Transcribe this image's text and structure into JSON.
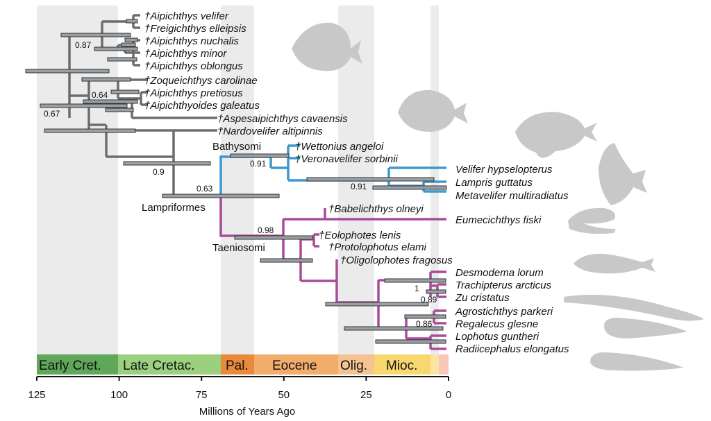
{
  "axis": {
    "label": "Millions of Years Ago",
    "ticks": [
      125,
      100,
      75,
      50,
      25,
      0
    ],
    "range_ma": [
      125,
      0
    ]
  },
  "periods": [
    {
      "label": "Early Cret.",
      "from": 125,
      "to": 100.5,
      "color": "#5fa85a"
    },
    {
      "label": "Late Cretac.",
      "from": 100.5,
      "to": 66,
      "color": "#9bd07e"
    },
    {
      "label": "Pal.",
      "from": 66,
      "to": 56,
      "color": "#e88a3a"
    },
    {
      "label": "Eocene",
      "from": 56,
      "to": 33.9,
      "color": "#f2ac6c"
    },
    {
      "label": "Olig.",
      "from": 33.9,
      "to": 23,
      "color": "#f5c392"
    },
    {
      "label": "Mioc.",
      "from": 23,
      "to": 5.3,
      "color": "#f8d86e"
    },
    {
      "label": "",
      "from": 5.3,
      "to": 2.6,
      "color": "#fbe3a2"
    },
    {
      "label": "",
      "from": 2.6,
      "to": 0,
      "color": "#f7c8b8"
    }
  ],
  "colors": {
    "stem": "#6d6d6d",
    "bathysomi": "#3d98cc",
    "taeniosomi": "#a84c9a",
    "silhouette": "#c8c8c8",
    "shade": "#e8e8e8",
    "bar": "#9aa0a4"
  },
  "taxa": [
    {
      "name": "†Aipichthys velifer",
      "age": 94,
      "lineage": "stem"
    },
    {
      "name": "†Freigichthys elleipsis",
      "age": 94,
      "lineage": "stem"
    },
    {
      "name": "†Aipichthys nuchalis",
      "age": 94,
      "lineage": "stem"
    },
    {
      "name": "†Aipichthys minor",
      "age": 94,
      "lineage": "stem"
    },
    {
      "name": "†Aipichthys oblongus",
      "age": 94,
      "lineage": "stem"
    },
    {
      "name": "†Zoqueichthys carolinae",
      "age": 94,
      "lineage": "stem"
    },
    {
      "name": "†Aipichthys pretiosus",
      "age": 94,
      "lineage": "stem"
    },
    {
      "name": "†Aipichthyoides galeatus",
      "age": 94,
      "lineage": "stem"
    },
    {
      "name": "†Aspesaipichthys cavaensis",
      "age": 70,
      "lineage": "stem"
    },
    {
      "name": "†Nardovelifer altipinnis",
      "age": 70,
      "lineage": "stem"
    },
    {
      "name": "†Wettonius angeloi",
      "age": 50,
      "lineage": "bathysomi"
    },
    {
      "name": "†Veronavelifer sorbinii",
      "age": 50,
      "lineage": "bathysomi"
    },
    {
      "name": "Velifer hypselopterus",
      "age": 0,
      "lineage": "bathysomi"
    },
    {
      "name": "Lampris guttatus",
      "age": 0,
      "lineage": "bathysomi"
    },
    {
      "name": "Metavelifer multiradiatus",
      "age": 0,
      "lineage": "bathysomi"
    },
    {
      "name": "†Babelichthys olneyi",
      "age": 38,
      "lineage": "taeniosomi"
    },
    {
      "name": "Eumecichthys fiski",
      "age": 0,
      "lineage": "taeniosomi"
    },
    {
      "name": "†Eolophotes lenis",
      "age": 41,
      "lineage": "taeniosomi"
    },
    {
      "name": "†Protolophotus elami",
      "age": 38,
      "lineage": "taeniosomi"
    },
    {
      "name": "†Oligolophotes fragosus",
      "age": 34,
      "lineage": "taeniosomi"
    },
    {
      "name": "Desmodema lorum",
      "age": 0,
      "lineage": "taeniosomi"
    },
    {
      "name": "Trachipterus arcticus",
      "age": 0,
      "lineage": "taeniosomi"
    },
    {
      "name": "Zu cristatus",
      "age": 0,
      "lineage": "taeniosomi"
    },
    {
      "name": "Agrostichthys parkeri",
      "age": 0,
      "lineage": "taeniosomi"
    },
    {
      "name": "Regalecus glesne",
      "age": 0,
      "lineage": "taeniosomi"
    },
    {
      "name": "Lophotus guntheri",
      "age": 0,
      "lineage": "taeniosomi"
    },
    {
      "name": "Radiicephalus elongatus",
      "age": 0,
      "lineage": "taeniosomi"
    }
  ],
  "clades": [
    "Bathysomi",
    "Lampriformes",
    "Taeniosomi"
  ],
  "support_values": [
    "0.87",
    "0.64",
    "0.67",
    "0.9",
    "0.63",
    "0.91",
    "0.91",
    "0.98",
    "1",
    "0.89",
    "0.86"
  ],
  "silhouettes": [
    "fish-opah-icon",
    "fish-moonfish-icon",
    "fish-velifer-icon",
    "fish-lampris-icon",
    "fish-crestfish-icon",
    "fish-dealfish-icon",
    "fish-oarfish-icon",
    "fish-tapertail-icon",
    "fish-ribbonfish-icon"
  ]
}
